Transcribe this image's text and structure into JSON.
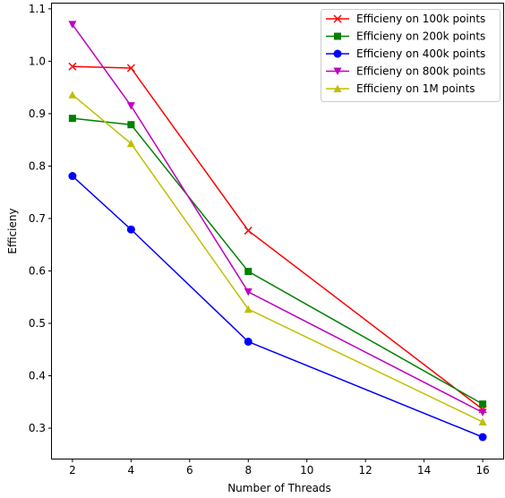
{
  "chart_data": {
    "type": "line",
    "xlabel": "Number of Threads",
    "ylabel": "Efficieny",
    "xlim": [
      1.3,
      16.7
    ],
    "ylim": [
      0.242,
      1.11
    ],
    "xticks": [
      2,
      4,
      6,
      8,
      10,
      12,
      14,
      16
    ],
    "yticks": [
      0.3,
      0.4,
      0.5,
      0.6,
      0.7,
      0.8,
      0.9,
      1.0,
      1.1
    ],
    "grid": false,
    "legend_position": "top-right",
    "x": [
      2,
      4,
      8,
      16
    ],
    "series": [
      {
        "name": "Efficieny on 100k points",
        "color": "#ff0000",
        "marker": "x",
        "values": [
          0.99,
          0.987,
          0.677,
          0.336
        ]
      },
      {
        "name": "Efficieny on 200k points",
        "color": "#008000",
        "marker": "square",
        "values": [
          0.891,
          0.879,
          0.599,
          0.346
        ]
      },
      {
        "name": "Efficieny on 400k points",
        "color": "#0000ff",
        "marker": "circle",
        "values": [
          0.781,
          0.679,
          0.465,
          0.283
        ]
      },
      {
        "name": "Efficieny on 800k points",
        "color": "#bf00bf",
        "marker": "triangle-down",
        "values": [
          1.07,
          0.915,
          0.56,
          0.33
        ]
      },
      {
        "name": "Efficieny on 1M points",
        "color": "#bfbf00",
        "marker": "triangle-up",
        "values": [
          0.936,
          0.843,
          0.527,
          0.312
        ]
      }
    ]
  }
}
